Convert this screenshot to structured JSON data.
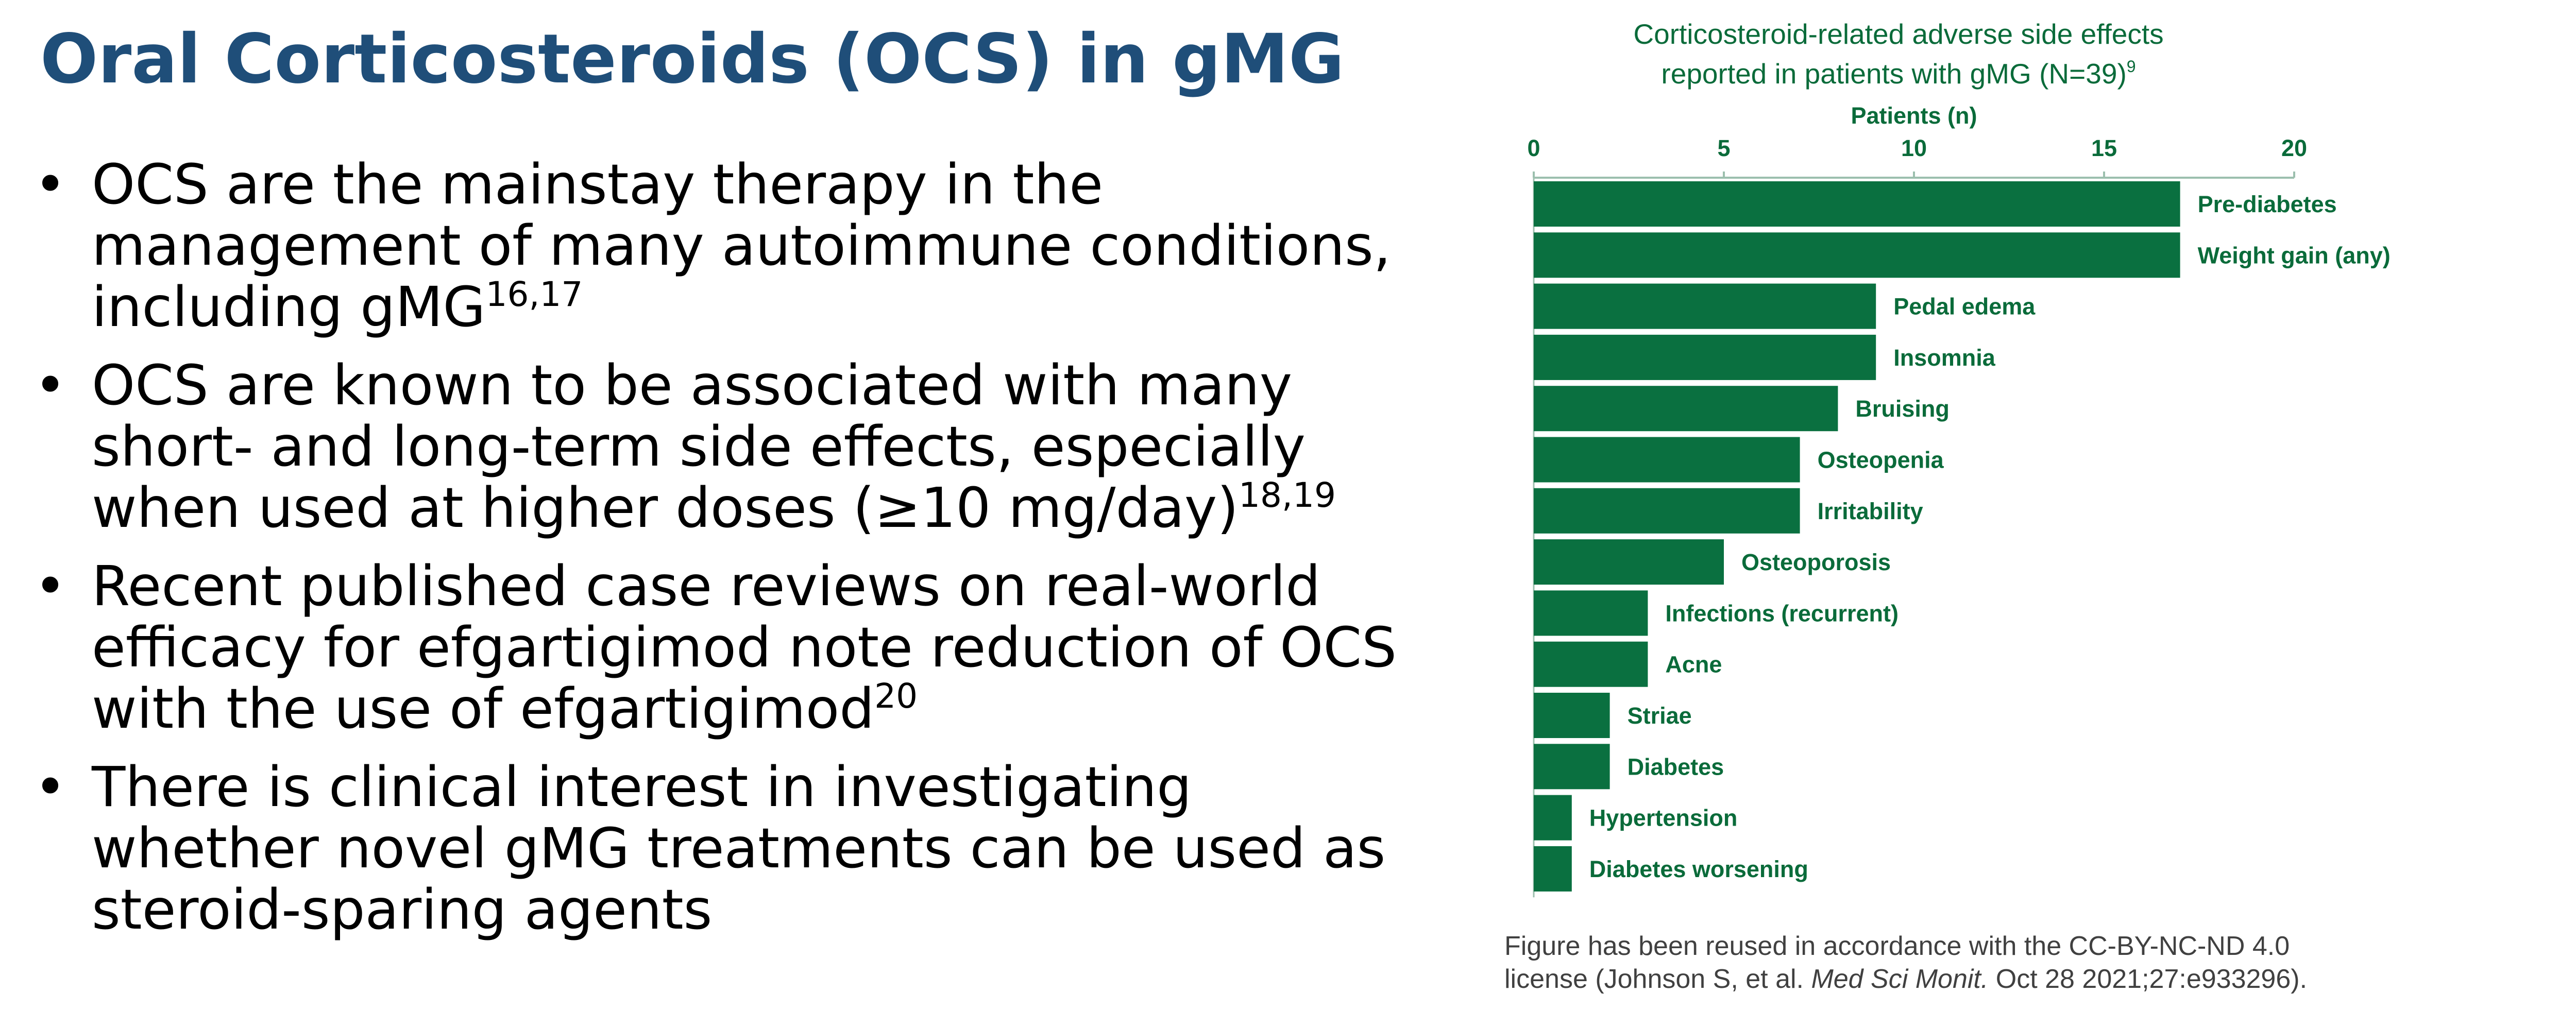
{
  "slide": {
    "title": "Oral Corticosteroids (OCS) in gMG",
    "bullet_char": "•",
    "bullets": [
      {
        "text": "OCS are the mainstay therapy in the management of many autoimmune conditions, including gMG",
        "sup": "16,17"
      },
      {
        "text": "OCS are known to be associated with many short- and long-term side effects, especially when used at higher doses (≥10 mg/day)",
        "sup": "18,19"
      },
      {
        "text": "Recent published case reviews on real-world efficacy for efgartigimod note reduction of OCS with the use of efgartigimod",
        "sup": "20"
      },
      {
        "text": "There is clinical interest in investigating whether novel gMG treatments can be used as steroid-sparing agents",
        "sup": ""
      }
    ],
    "caption": {
      "line1": "Figure has been reused in accordance with the CC-BY-NC-ND 4.0",
      "line2_pre": "license (Johnson S, et al. ",
      "line2_em": "Med Sci Monit.",
      "line2_post": " Oct 28 2021;27:e933296)."
    }
  },
  "chart_data": {
    "type": "bar",
    "orientation": "horizontal",
    "title_line1": "Corticosteroid-related adverse side effects",
    "title_line2": "reported in patients with gMG (N=39)",
    "title_sup": "9",
    "xlabel": "Patients (n)",
    "xlim": [
      0,
      20
    ],
    "xticks": [
      0,
      5,
      10,
      15,
      20
    ],
    "axis_position": "top",
    "grid": false,
    "bar_color": "#0a7040",
    "text_color": "#0a6b3a",
    "categories": [
      "Pre-diabetes",
      "Weight gain (any)",
      "Pedal edema",
      "Insomnia",
      "Bruising",
      "Osteopenia",
      "Irritability",
      "Osteoporosis",
      "Infections (recurrent)",
      "Acne",
      "Striae",
      "Diabetes",
      "Hypertension",
      "Diabetes worsening"
    ],
    "values": [
      17,
      17,
      9,
      9,
      8,
      7,
      7,
      5,
      3,
      3,
      2,
      2,
      1,
      1
    ]
  }
}
